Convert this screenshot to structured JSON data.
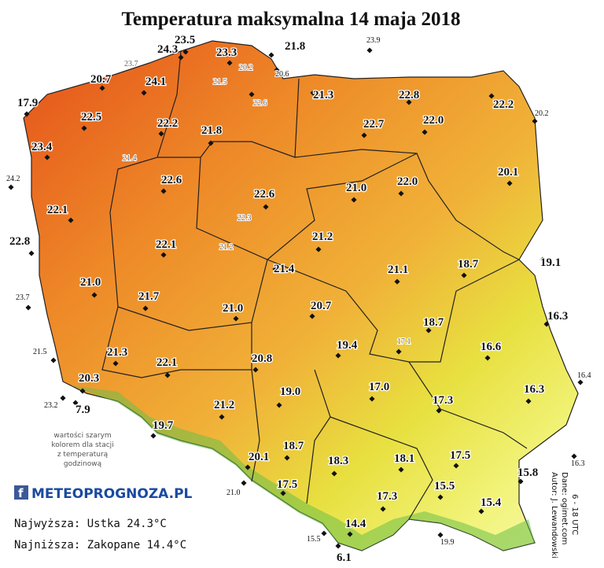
{
  "title": "Temperatura maksymalna 14 maja 2018",
  "stations": [
    "24.3",
    "23.5",
    "23.3",
    "21.8",
    "20.7",
    "24.1",
    "17.9",
    "21.3",
    "22.8",
    "22.2",
    "22.5",
    "22.2",
    "21.8",
    "22.7",
    "22.0",
    "23.4",
    "22.6",
    "22.6",
    "21.0",
    "22.0",
    "20.1",
    "22.1",
    "22.8",
    "22.1",
    "21.2",
    "21.1",
    "18.7",
    "19.1",
    "21.4",
    "21.0",
    "21.7",
    "21.0",
    "20.7",
    "18.7",
    "16.3",
    "16.6",
    "19.4",
    "21.3",
    "22.1",
    "20.8",
    "17.0",
    "16.3",
    "20.3",
    "19.0",
    "17.3",
    "7.9",
    "21.2",
    "19.7",
    "18.7",
    "20.1",
    "18.3",
    "18.1",
    "17.5",
    "15.8",
    "17.5",
    "15.5",
    "17.3",
    "15.4",
    "14.4",
    "6.1"
  ],
  "small_stations": [
    "23.9",
    "20.2",
    "24.2",
    "23.7",
    "21.5",
    "23.2",
    "16.4",
    "16.3",
    "21.0",
    "15.5",
    "19.9",
    "20.6"
  ],
  "gray_stations": [
    "23.7",
    "20.2",
    "21.5",
    "22.6",
    "21.4",
    "22.3",
    "21.2",
    "17.1"
  ],
  "note": [
    "wartości szarym",
    "kolorem dla stacji",
    "z temperaturą",
    "godzinową"
  ],
  "logo": "METEOPROGNOZA.PL",
  "highest": "Najwyższa: Ustka 24.3°C",
  "lowest": "Najniższa: Zakopane 14.4°C",
  "credits": [
    "Autor: J. Lewandowski",
    "Dane: ogimet.com",
    "6 - 18 UTC"
  ]
}
